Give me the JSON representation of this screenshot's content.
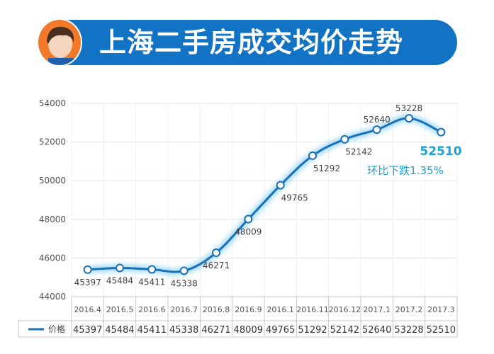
{
  "header": {
    "title": "上海二手房成交均价走势"
  },
  "annotation": {
    "value": "52510",
    "change": "环比下跌1.35%"
  },
  "colors": {
    "line": "#1a6fb5",
    "accent": "#1aa0d8",
    "banner": "#1273c4"
  },
  "chart_data": {
    "type": "line",
    "title": "上海二手房成交均价走势",
    "categories": [
      "2016.4",
      "2016.5",
      "2016.6",
      "2016.7",
      "2016.8",
      "2016.9",
      "2016.1",
      "2016.11",
      "2016.12",
      "2017.1",
      "2017.2",
      "2017.3"
    ],
    "series": [
      {
        "name": "价格",
        "values": [
          45397,
          45484,
          45411,
          45338,
          46271,
          48009,
          49765,
          51292,
          52142,
          52640,
          53228,
          52510
        ]
      }
    ],
    "yticks": [
      44000,
      46000,
      48000,
      50000,
      52000,
      54000
    ],
    "ylim": [
      44000,
      54000
    ],
    "grid": true,
    "legend": "bottom-left data table"
  }
}
